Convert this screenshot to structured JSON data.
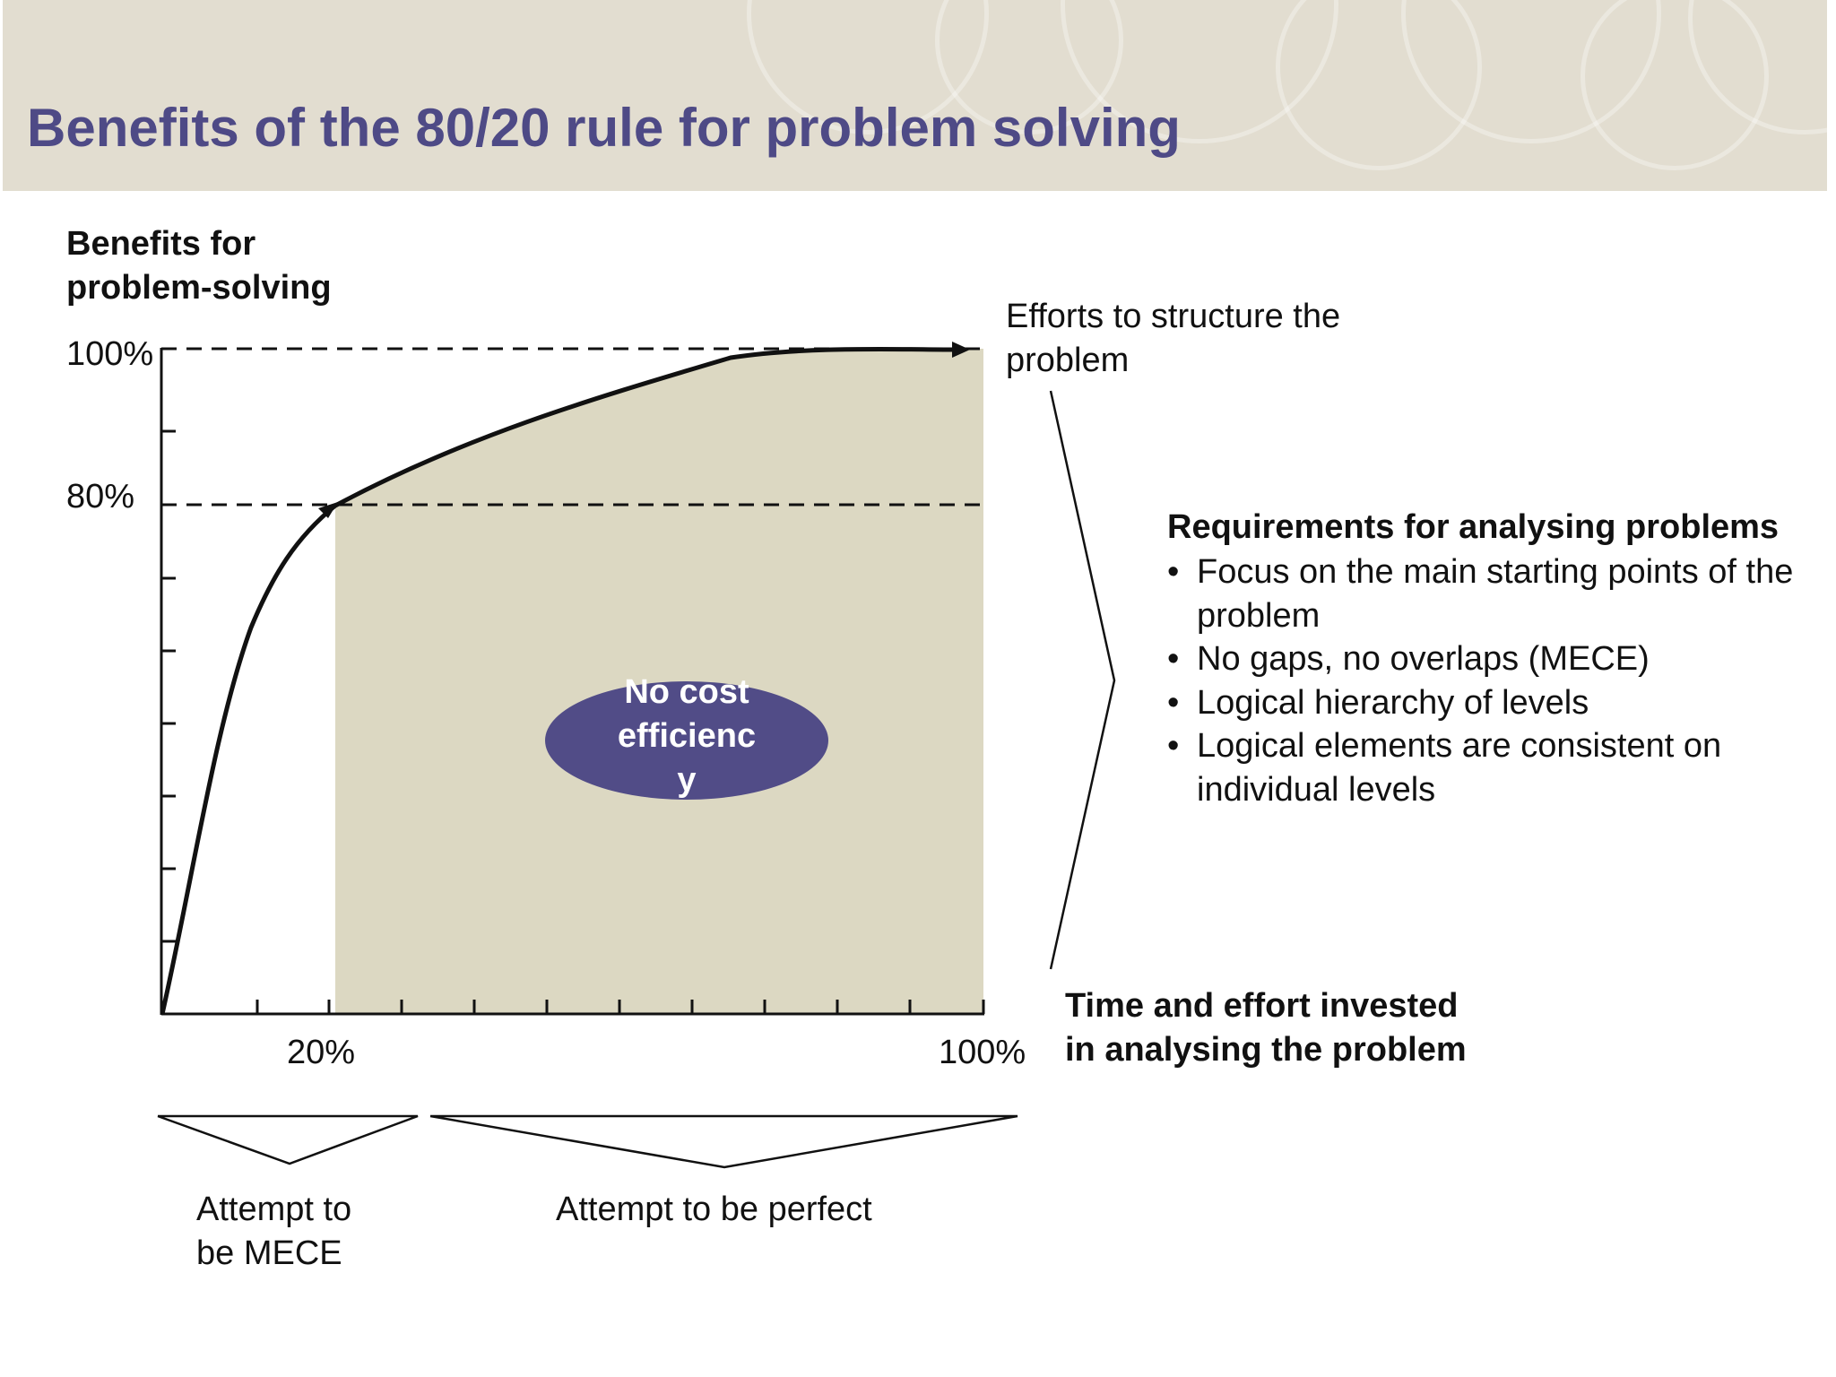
{
  "title": "Benefits of the 80/20 rule for problem solving",
  "y_axis_label": [
    "Benefits for",
    "problem-solving"
  ],
  "y_ticks": [
    "100%",
    "80%"
  ],
  "x_ticks": [
    "20%",
    "100%"
  ],
  "x_axis_label": [
    "Time and effort invested",
    "in analysing the problem"
  ],
  "efforts_label": [
    "Efforts to structure the",
    "problem"
  ],
  "ellipse_label": [
    "No cost",
    "efficienc",
    "y"
  ],
  "bracket_labels": {
    "mece": [
      "Attempt to",
      "be MECE"
    ],
    "perfect": "Attempt to be perfect"
  },
  "requirements": {
    "heading": "Requirements for analysing problems",
    "items": [
      "Focus on the main starting points of the problem",
      "No gaps, no overlaps (MECE)",
      "Logical hierarchy of levels",
      "Logical elements are consistent on individual levels"
    ]
  },
  "colors": {
    "title": "#4e4a86",
    "header_bg": "#e2ddd0",
    "shaded_area": "#dcd8c2",
    "ellipse": "#514c87"
  }
}
